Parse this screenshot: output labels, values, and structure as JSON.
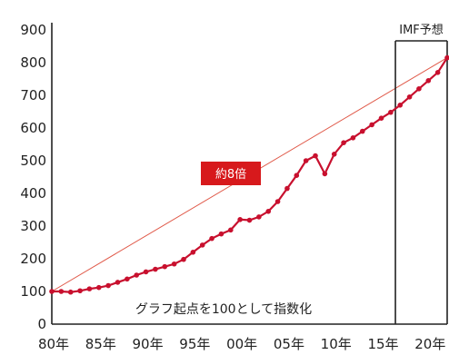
{
  "chart_data": {
    "type": "line",
    "title": "",
    "xlabel": "",
    "ylabel": "",
    "xlim": [
      1980,
      2022
    ],
    "ylim": [
      0,
      900
    ],
    "y_ticks": [
      0,
      100,
      200,
      300,
      400,
      500,
      600,
      700,
      800,
      900
    ],
    "x_ticks": [
      {
        "year": 1980,
        "label": "80年"
      },
      {
        "year": 1985,
        "label": "85年"
      },
      {
        "year": 1990,
        "label": "90年"
      },
      {
        "year": 1995,
        "label": "95年"
      },
      {
        "year": 2000,
        "label": "00年"
      },
      {
        "year": 2005,
        "label": "05年"
      },
      {
        "year": 2010,
        "label": "10年"
      },
      {
        "year": 2015,
        "label": "15年"
      },
      {
        "year": 2020,
        "label": "20年"
      }
    ],
    "series": [
      {
        "name": "",
        "color": "#c8102e",
        "x": [
          1980,
          1981,
          1982,
          1983,
          1984,
          1985,
          1986,
          1987,
          1988,
          1989,
          1990,
          1991,
          1992,
          1993,
          1994,
          1995,
          1996,
          1997,
          1998,
          1999,
          2000,
          2001,
          2002,
          2003,
          2004,
          2005,
          2006,
          2007,
          2008,
          2009,
          2010,
          2011,
          2012,
          2013,
          2014,
          2015,
          2016,
          2017,
          2018,
          2019,
          2020,
          2021,
          2022
        ],
        "values": [
          100,
          100,
          98,
          102,
          108,
          112,
          118,
          128,
          138,
          150,
          160,
          168,
          176,
          184,
          198,
          220,
          242,
          262,
          276,
          288,
          320,
          318,
          328,
          345,
          375,
          415,
          455,
          500,
          515,
          460,
          520,
          555,
          570,
          590,
          610,
          630,
          648,
          670,
          695,
          720,
          745,
          770,
          815
        ]
      }
    ],
    "trend_line": {
      "color": "#e05a4a",
      "x": [
        1980,
        2022
      ],
      "values": [
        100,
        815
      ]
    },
    "forecast": {
      "start_year": 2016.5,
      "label": "IMF予想"
    },
    "annotations": {
      "badge": {
        "text": "約8倍",
        "color": "#d7191c"
      },
      "note": "グラフ起点を100として指数化"
    }
  }
}
